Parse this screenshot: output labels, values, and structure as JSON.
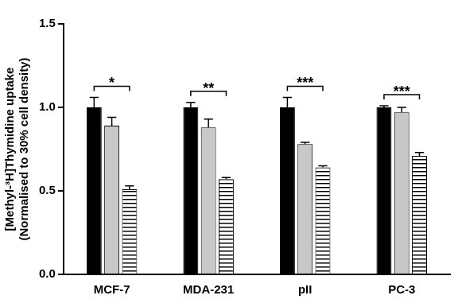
{
  "chart_data": {
    "type": "bar",
    "y_label": [
      "[Methyl-³H]Thymidine uptake",
      "(Normalised to 30% cell density)"
    ],
    "categories": [
      "MCF-7",
      "MDA-231",
      "pII",
      "PC-3"
    ],
    "series": [
      {
        "color": "#000000",
        "values": [
          1.0,
          1.0,
          1.0,
          1.0
        ],
        "errors": [
          0.06,
          0.03,
          0.06,
          0.01
        ]
      },
      {
        "color": "#c8c8c8",
        "values": [
          0.89,
          0.88,
          0.78,
          0.97
        ],
        "errors": [
          0.05,
          0.05,
          0.01,
          0.03
        ]
      },
      {
        "color": "#ffffff",
        "marker": "hatch",
        "values": [
          0.51,
          0.57,
          0.64,
          0.71
        ],
        "errors": [
          0.02,
          0.01,
          0.01,
          0.02
        ]
      }
    ],
    "ylim": [
      0,
      1.5
    ],
    "yticks": [
      {
        "value": 0,
        "label": "0.0"
      },
      {
        "value": 0.5,
        "label": "0.5"
      },
      {
        "value": 1,
        "label": "1.0"
      },
      {
        "value": 1.5,
        "label": "1.5"
      }
    ],
    "grid": false,
    "significance": [
      {
        "category": "MCF-7",
        "label": "*"
      },
      {
        "category": "MDA-231",
        "label": "**"
      },
      {
        "category": "pII",
        "label": "***"
      },
      {
        "category": "PC-3",
        "label": "***"
      }
    ]
  }
}
